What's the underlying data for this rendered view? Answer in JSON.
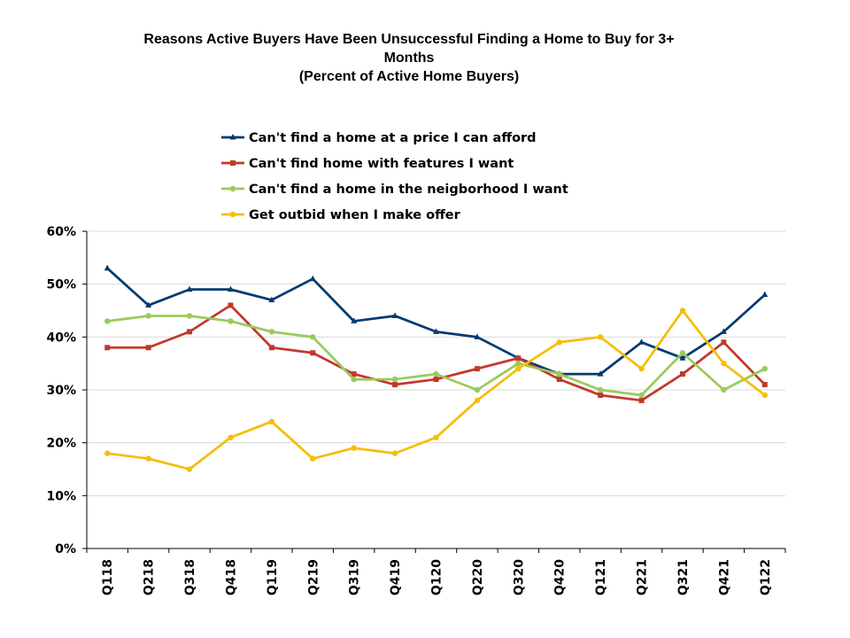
{
  "chart_data": {
    "type": "line",
    "title_lines": [
      "Reasons Active Buyers Have Been Unsuccessful Finding a Home to Buy for 3+",
      "Months",
      "(Percent of Active Home Buyers)"
    ],
    "categories": [
      "Q118",
      "Q218",
      "Q318",
      "Q418",
      "Q119",
      "Q219",
      "Q319",
      "Q419",
      "Q120",
      "Q220",
      "Q320",
      "Q420",
      "Q121",
      "Q221",
      "Q321",
      "Q421",
      "Q122"
    ],
    "y_ticks": [
      "0%",
      "10%",
      "20%",
      "30%",
      "40%",
      "50%",
      "60%"
    ],
    "ylim": [
      0,
      60
    ],
    "grid": true,
    "legend_position": "top",
    "series": [
      {
        "name": "Can't find a home at a price I can afford",
        "color": "#003A70",
        "marker": "triangle",
        "values": [
          53,
          46,
          49,
          49,
          47,
          51,
          43,
          44,
          41,
          40,
          36,
          33,
          33,
          39,
          36,
          41,
          48
        ]
      },
      {
        "name": "Can't find home with features I want",
        "color": "#C0392B",
        "marker": "square",
        "values": [
          38,
          38,
          41,
          46,
          38,
          37,
          33,
          31,
          32,
          34,
          36,
          32,
          29,
          28,
          33,
          39,
          31
        ]
      },
      {
        "name": "Can't find a home in the neigborhood I want",
        "color": "#9BC95B",
        "marker": "circle",
        "values": [
          43,
          44,
          44,
          43,
          41,
          40,
          32,
          32,
          33,
          30,
          35,
          33,
          30,
          29,
          37,
          30,
          34
        ]
      },
      {
        "name": "Get outbid when I make offer",
        "color": "#F5BE0B",
        "marker": "circle",
        "values": [
          18,
          17,
          15,
          21,
          24,
          17,
          19,
          18,
          21,
          28,
          34,
          39,
          40,
          34,
          45,
          35,
          29
        ]
      }
    ]
  }
}
